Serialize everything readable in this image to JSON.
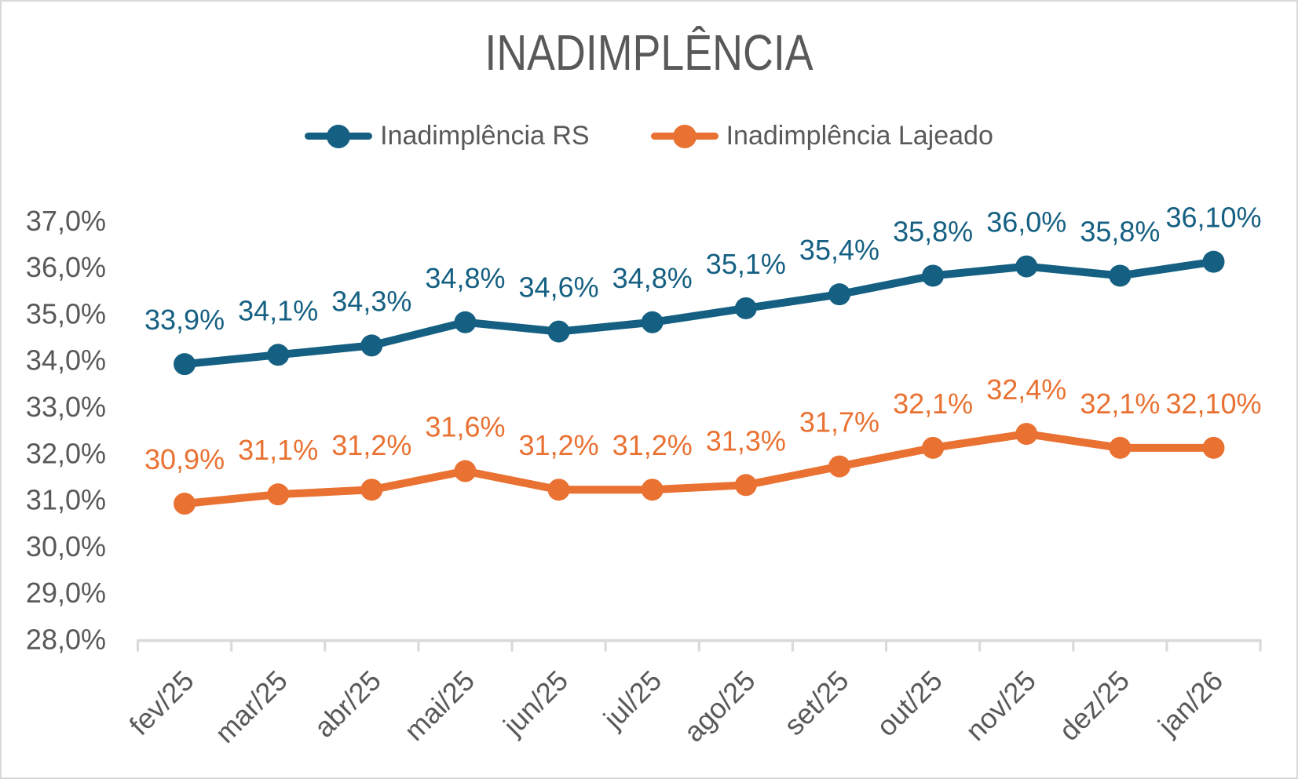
{
  "chart_data": {
    "type": "line",
    "title": "INADIMPLÊNCIA",
    "categories": [
      "fev/25",
      "mar/25",
      "abr/25",
      "mai/25",
      "jun/25",
      "jul/25",
      "ago/25",
      "set/25",
      "out/25",
      "nov/25",
      "dez/25",
      "jan/26"
    ],
    "series": [
      {
        "name": "Inadimplência RS",
        "color": "#156082",
        "values": [
          33.9,
          34.1,
          34.3,
          34.8,
          34.6,
          34.8,
          35.1,
          35.4,
          35.8,
          36.0,
          35.8,
          36.1
        ],
        "data_labels": [
          "33,9%",
          "34,1%",
          "34,3%",
          "34,8%",
          "34,6%",
          "34,8%",
          "35,1%",
          "35,4%",
          "35,8%",
          "36,0%",
          "35,8%",
          "36,10%"
        ]
      },
      {
        "name": "Inadimplência Lajeado",
        "color": "#E97132",
        "values": [
          30.9,
          31.1,
          31.2,
          31.6,
          31.2,
          31.2,
          31.3,
          31.7,
          32.1,
          32.4,
          32.1,
          32.1
        ],
        "data_labels": [
          "30,9%",
          "31,1%",
          "31,2%",
          "31,6%",
          "31,2%",
          "31,2%",
          "31,3%",
          "31,7%",
          "32,1%",
          "32,4%",
          "32,1%",
          "32,10%"
        ]
      }
    ],
    "y_axis": {
      "min": 28,
      "max": 37,
      "step": 1,
      "tick_labels": [
        "28,0%",
        "29,0%",
        "30,0%",
        "31,0%",
        "32,0%",
        "33,0%",
        "34,0%",
        "35,0%",
        "36,0%",
        "37,0%"
      ]
    },
    "x_axis": {
      "tick_labels": [
        "fev/25",
        "mar/25",
        "abr/25",
        "mai/25",
        "jun/25",
        "jul/25",
        "ago/25",
        "set/25",
        "out/25",
        "nov/25",
        "dez/25",
        "jan/26"
      ]
    },
    "grid": false,
    "legend_position": "top",
    "marker": "circle",
    "colors": {
      "label_gray": "#595959",
      "axis_gray": "#D9D9D9",
      "background": "#FFFFFF"
    }
  }
}
